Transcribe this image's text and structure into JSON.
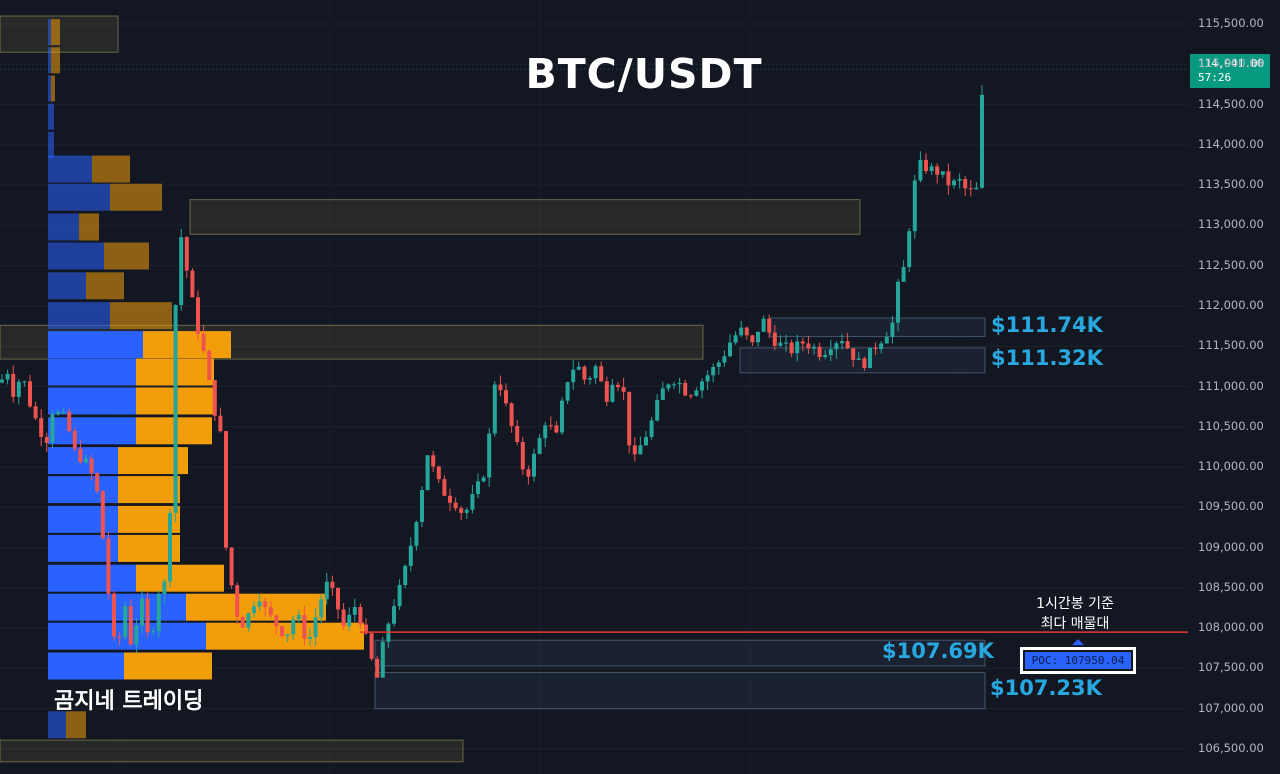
{
  "header": {
    "title": "BTC/USDT",
    "brand": "곰지네 트레이딩"
  },
  "current_price": {
    "price": "114,941.00",
    "countdown": "57:26",
    "color": "#089981"
  },
  "poc": {
    "note_line1": "1시간봉 기준",
    "note_line2": "최다 매물대",
    "label": "POC: 107950.04",
    "price": 107950.04,
    "line_color": "#e53935"
  },
  "zones": [
    {
      "label": "$111.74K",
      "high": 111850,
      "low": 111620
    },
    {
      "label": "$111.32K",
      "high": 111480,
      "low": 111170
    },
    {
      "label": "$107.69K",
      "high": 107850,
      "low": 107530
    },
    {
      "label": "$107.23K",
      "high": 107450,
      "low": 107000
    }
  ],
  "colors": {
    "up": "#26a69a",
    "down": "#ef5350",
    "label": "#29a8e0",
    "vp_blue": "#2962ff",
    "vp_orange": "#f29d0a",
    "background": "#131722"
  },
  "chart_data": {
    "type": "candlestick",
    "title": "BTC/USDT",
    "timeframe": "1시간봉",
    "y_axis": {
      "min": 106400,
      "max": 115600,
      "ticks": [
        106500,
        107000,
        107500,
        108000,
        108500,
        109000,
        109500,
        110000,
        110500,
        111000,
        111500,
        112000,
        112500,
        113000,
        113500,
        114000,
        114500,
        115000,
        115500
      ]
    },
    "y_tick_labels": [
      "106,500.00",
      "107,000.00",
      "107,500.00",
      "108,000.00",
      "108,500.00",
      "109,000.00",
      "109,500.00",
      "110,000.00",
      "110,500.00",
      "111,000.00",
      "111,500.00",
      "112,000.00",
      "112,500.00",
      "113,000.00",
      "113,500.00",
      "114,000.00",
      "114,500.00",
      "115,000.00",
      "115,500.00"
    ],
    "waypoints": [
      [
        0,
        111050
      ],
      [
        8,
        111200
      ],
      [
        12,
        110900
      ],
      [
        22,
        111150
      ],
      [
        32,
        110700
      ],
      [
        46,
        110300
      ],
      [
        52,
        110700
      ],
      [
        66,
        110600
      ],
      [
        74,
        110200
      ],
      [
        86,
        110050
      ],
      [
        96,
        109800
      ],
      [
        106,
        108800
      ],
      [
        112,
        107900
      ],
      [
        118,
        107700
      ],
      [
        124,
        108400
      ],
      [
        130,
        107800
      ],
      [
        142,
        108300
      ],
      [
        150,
        107750
      ],
      [
        158,
        108450
      ],
      [
        168,
        108600
      ],
      [
        178,
        113100
      ],
      [
        186,
        112500
      ],
      [
        196,
        111800
      ],
      [
        206,
        111300
      ],
      [
        212,
        110800
      ],
      [
        220,
        110500
      ],
      [
        226,
        109000
      ],
      [
        232,
        108500
      ],
      [
        240,
        108000
      ],
      [
        250,
        108200
      ],
      [
        258,
        108450
      ],
      [
        266,
        108200
      ],
      [
        276,
        108050
      ],
      [
        286,
        107900
      ],
      [
        296,
        108200
      ],
      [
        308,
        107800
      ],
      [
        318,
        108250
      ],
      [
        326,
        108550
      ],
      [
        334,
        108400
      ],
      [
        344,
        108000
      ],
      [
        356,
        108300
      ],
      [
        364,
        107950
      ],
      [
        370,
        107700
      ],
      [
        376,
        107300
      ],
      [
        384,
        107850
      ],
      [
        392,
        108250
      ],
      [
        402,
        108550
      ],
      [
        412,
        109100
      ],
      [
        420,
        109600
      ],
      [
        428,
        110200
      ],
      [
        436,
        109850
      ],
      [
        446,
        109650
      ],
      [
        456,
        109550
      ],
      [
        464,
        109400
      ],
      [
        476,
        109700
      ],
      [
        486,
        110000
      ],
      [
        496,
        111200
      ],
      [
        506,
        110750
      ],
      [
        516,
        110300
      ],
      [
        526,
        109850
      ],
      [
        536,
        110200
      ],
      [
        546,
        110600
      ],
      [
        556,
        110350
      ],
      [
        566,
        111050
      ],
      [
        576,
        111300
      ],
      [
        586,
        111050
      ],
      [
        596,
        111250
      ],
      [
        606,
        110850
      ],
      [
        614,
        111150
      ],
      [
        624,
        110900
      ],
      [
        632,
        110000
      ],
      [
        640,
        110250
      ],
      [
        650,
        110500
      ],
      [
        658,
        110800
      ],
      [
        666,
        111050
      ],
      [
        676,
        111100
      ],
      [
        688,
        110900
      ],
      [
        700,
        111050
      ],
      [
        712,
        111200
      ],
      [
        722,
        111350
      ],
      [
        732,
        111600
      ],
      [
        742,
        111700
      ],
      [
        752,
        111500
      ],
      [
        762,
        111850
      ],
      [
        772,
        111600
      ],
      [
        782,
        111500
      ],
      [
        792,
        111450
      ],
      [
        802,
        111550
      ],
      [
        812,
        111500
      ],
      [
        822,
        111400
      ],
      [
        832,
        111550
      ],
      [
        842,
        111600
      ],
      [
        852,
        111400
      ],
      [
        862,
        111250
      ],
      [
        872,
        111450
      ],
      [
        882,
        111600
      ],
      [
        892,
        111750
      ],
      [
        900,
        112400
      ],
      [
        906,
        112500
      ],
      [
        912,
        113400
      ],
      [
        920,
        113750
      ],
      [
        930,
        113700
      ],
      [
        940,
        113650
      ],
      [
        950,
        113500
      ],
      [
        960,
        113550
      ],
      [
        968,
        113400
      ],
      [
        978,
        113450
      ],
      [
        980,
        114400
      ],
      [
        986,
        114941
      ]
    ],
    "volume_profile": [
      {
        "price": 115400,
        "blue": 3,
        "orange": 9
      },
      {
        "price": 115050,
        "blue": 3,
        "orange": 9
      },
      {
        "price": 114700,
        "blue": 3,
        "orange": 4
      },
      {
        "price": 114350,
        "blue": 6,
        "orange": 0
      },
      {
        "price": 114000,
        "blue": 6,
        "orange": 0
      },
      {
        "price": 113700,
        "blue": 44,
        "orange": 38
      },
      {
        "price": 113350,
        "blue": 62,
        "orange": 52
      },
      {
        "price": 112980,
        "blue": 31,
        "orange": 20
      },
      {
        "price": 112620,
        "blue": 56,
        "orange": 45
      },
      {
        "price": 112250,
        "blue": 38,
        "orange": 38
      },
      {
        "price": 111880,
        "blue": 62,
        "orange": 62
      },
      {
        "price": 111520,
        "blue": 95,
        "orange": 88
      },
      {
        "price": 111180,
        "blue": 88,
        "orange": 78
      },
      {
        "price": 110820,
        "blue": 88,
        "orange": 78
      },
      {
        "price": 110450,
        "blue": 88,
        "orange": 76
      },
      {
        "price": 110080,
        "blue": 70,
        "orange": 70
      },
      {
        "price": 109720,
        "blue": 70,
        "orange": 62
      },
      {
        "price": 109350,
        "blue": 70,
        "orange": 62
      },
      {
        "price": 108990,
        "blue": 70,
        "orange": 62
      },
      {
        "price": 108620,
        "blue": 88,
        "orange": 88
      },
      {
        "price": 108260,
        "blue": 138,
        "orange": 140
      },
      {
        "price": 107900,
        "blue": 158,
        "orange": 158
      },
      {
        "price": 107530,
        "blue": 76,
        "orange": 88
      },
      {
        "price": 106800,
        "blue": 18,
        "orange": 20
      }
    ],
    "bands": [
      {
        "x0": 0,
        "x1": 118,
        "high": 115600,
        "low": 115150
      },
      {
        "x0": 190,
        "x1": 860,
        "high": 113320,
        "low": 112890
      },
      {
        "x0": 0,
        "x1": 703,
        "high": 111760,
        "low": 111340
      },
      {
        "x0": 0,
        "x1": 463,
        "high": 106610,
        "low": 106340
      }
    ]
  }
}
